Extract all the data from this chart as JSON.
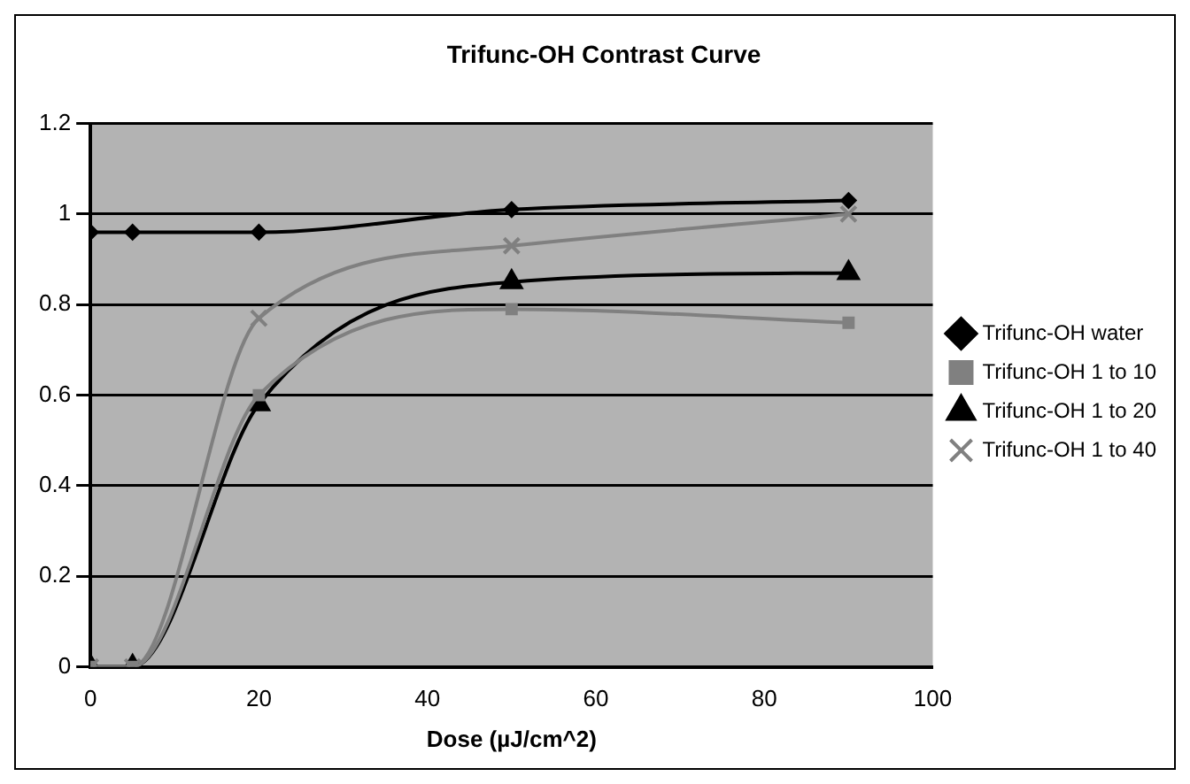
{
  "chart_data": {
    "type": "line",
    "title": "Trifunc-OH Contrast Curve",
    "xlabel": "Dose (µJ/cm^2)",
    "x": [
      0,
      5,
      20,
      50,
      90
    ],
    "xlim": [
      0,
      100
    ],
    "xticks": [
      0,
      20,
      40,
      60,
      80,
      100
    ],
    "ylim": [
      0,
      1.2
    ],
    "yticks": [
      0,
      0.2,
      0.4,
      0.6,
      0.8,
      1,
      1.2
    ],
    "grid": "y",
    "legend": "right",
    "line_style": "solid",
    "series": [
      {
        "name": "Trifunc-OH water",
        "color": "#000000",
        "marker": "diamond",
        "values": [
          0.96,
          0.96,
          0.96,
          1.01,
          1.03
        ]
      },
      {
        "name": "Trifunc-OH 1 to 10",
        "color": "#808080",
        "marker": "square",
        "values": [
          0,
          0,
          0.6,
          0.79,
          0.76
        ]
      },
      {
        "name": "Trifunc-OH 1 to 20",
        "color": "#000000",
        "marker": "triangle",
        "values": [
          0,
          0,
          0.58,
          0.85,
          0.87
        ]
      },
      {
        "name": "Trifunc-OH 1 to 40",
        "color": "#808080",
        "marker": "cross",
        "values": [
          0,
          0,
          0.77,
          0.93,
          1.0
        ]
      }
    ]
  }
}
